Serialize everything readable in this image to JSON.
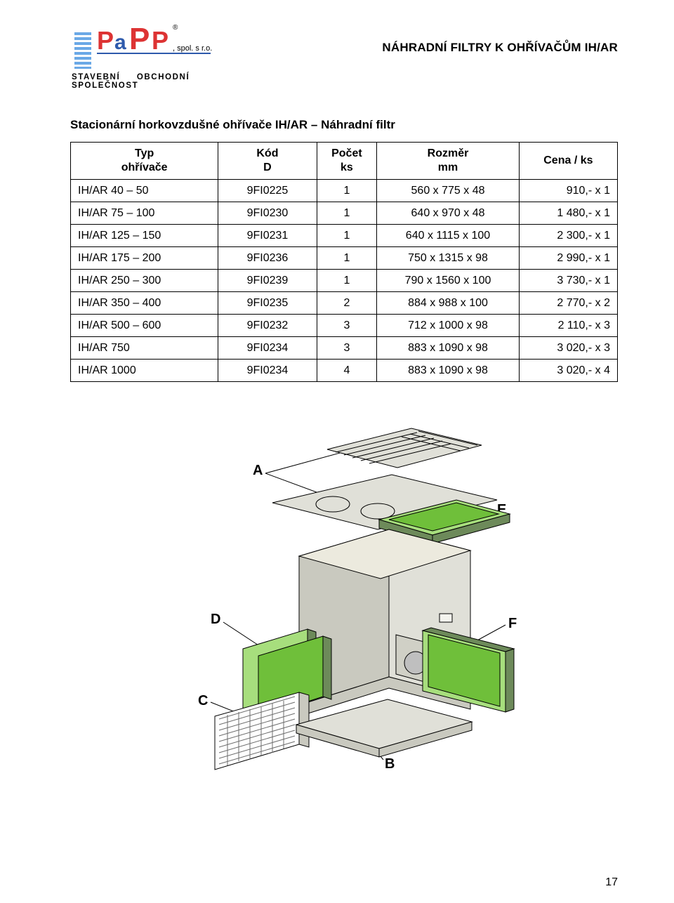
{
  "header": {
    "logo_company": "PaPP",
    "logo_suffix": ", spol. s r.o.",
    "logo_reg": "®",
    "tagline_left": "STAVEBNÍ",
    "tagline_right": "OBCHODNÍ SPOLEČNOST",
    "doc_title": "NÁHRADNÍ FILTRY K OHŘÍVAČŮM IH/AR"
  },
  "section_title": "Stacionární horkovzdušné ohřívače IH/AR – Náhradní filtr",
  "table": {
    "columns": [
      {
        "l1": "Typ",
        "l2": "ohřívače"
      },
      {
        "l1": "Kód",
        "l2": "D"
      },
      {
        "l1": "Počet",
        "l2": "ks"
      },
      {
        "l1": "Rozměr",
        "l2": "mm"
      },
      {
        "l1": "Cena / ks",
        "l2": ""
      }
    ],
    "rows": [
      [
        "IH/AR 40 – 50",
        "9FI0225",
        "1",
        "560 x 775 x 48",
        "910,- x 1"
      ],
      [
        "IH/AR 75 – 100",
        "9FI0230",
        "1",
        "640 x 970 x 48",
        "1 480,- x 1"
      ],
      [
        "IH/AR 125 – 150",
        "9FI0231",
        "1",
        "640 x 1115 x 100",
        "2 300,- x 1"
      ],
      [
        "IH/AR 175 – 200",
        "9FI0236",
        "1",
        "750 x 1315 x 98",
        "2 990,- x 1"
      ],
      [
        "IH/AR 250 – 300",
        "9FI0239",
        "1",
        "790 x 1560 x 100",
        "3 730,- x 1"
      ],
      [
        "IH/AR 350 – 400",
        "9FI0235",
        "2",
        "884 x 988 x 100",
        "2 770,- x 2"
      ],
      [
        "IH/AR 500 – 600",
        "9FI0232",
        "3",
        "712 x 1000 x 98",
        "2 110,- x 3"
      ],
      [
        "IH/AR 750",
        "9FI0234",
        "3",
        "883 x 1090 x 98",
        "3 020,- x 3"
      ],
      [
        "IH/AR 1000",
        "9FI0234",
        "4",
        "883 x 1090 x 98",
        "3 020,- x 4"
      ]
    ]
  },
  "diagram": {
    "labels": {
      "A": "A",
      "B": "B",
      "C": "C",
      "D": "D",
      "E": "E",
      "F": "F"
    },
    "colors": {
      "body_face": "#e0e0d8",
      "body_shadow": "#c9c9bf",
      "panel_green": "#6fbf3a",
      "panel_green_light": "#a7de7d",
      "panel_dark": "#6d8a5a",
      "line": "#000000",
      "fan": "#bfbfbf",
      "mesh": "#6d6d6d",
      "label_font": "#000000"
    },
    "label_fontsize": 20
  },
  "page_number": "17"
}
